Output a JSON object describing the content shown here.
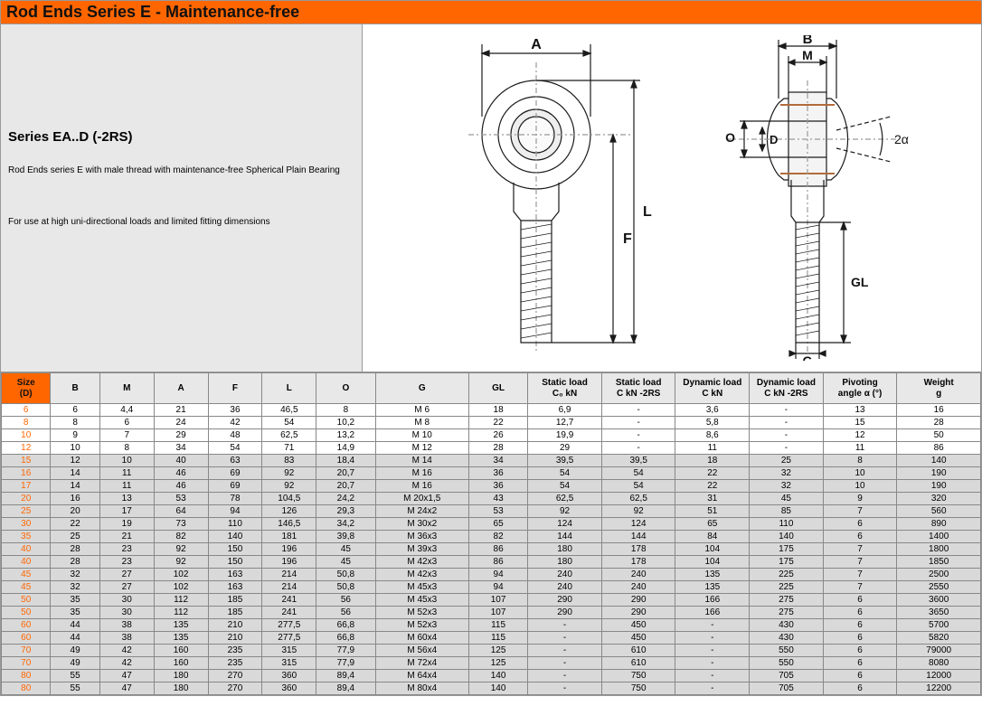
{
  "header": {
    "title": "Rod Ends Series E - Maintenance-free"
  },
  "series": {
    "name": "Series EA..D (-2RS)",
    "line1": "Rod Ends series E with male thread with maintenance-free Spherical Plain Bearing",
    "line2": "For use at high uni-directional loads and limited fitting dimensions"
  },
  "diagram": {
    "labels": {
      "A": "A",
      "F": "F",
      "L": "L",
      "B": "B",
      "M": "M",
      "O": "O",
      "D": "D",
      "GL": "GL",
      "G": "G",
      "angle": "2α"
    },
    "stroke": "#1a1a1a",
    "thin": "#777",
    "copper": "#b36b3a"
  },
  "table": {
    "columns": [
      "Size\n(D)",
      "B",
      "M",
      "A",
      "F",
      "L",
      "O",
      "G",
      "GL",
      "Static load\nC₀ kN",
      "Static load\nC kN -2RS",
      "Dynamic load\nC kN",
      "Dynamic load\nC kN -2RS",
      "Pivoting\nangle α (°)",
      "Weight\ng"
    ],
    "rows": [
      [
        "6",
        "6",
        "4,4",
        "21",
        "36",
        "46,5",
        "8",
        "M 6",
        "18",
        "6,9",
        "-",
        "3,6",
        "-",
        "13",
        "16"
      ],
      [
        "8",
        "8",
        "6",
        "24",
        "42",
        "54",
        "10,2",
        "M 8",
        "22",
        "12,7",
        "-",
        "5,8",
        "-",
        "15",
        "28"
      ],
      [
        "10",
        "9",
        "7",
        "29",
        "48",
        "62,5",
        "13,2",
        "M 10",
        "26",
        "19,9",
        "-",
        "8,6",
        "-",
        "12",
        "50"
      ],
      [
        "12",
        "10",
        "8",
        "34",
        "54",
        "71",
        "14,9",
        "M 12",
        "28",
        "29",
        "-",
        "11",
        "-",
        "11",
        "86"
      ],
      [
        "15",
        "12",
        "10",
        "40",
        "63",
        "83",
        "18,4",
        "M 14",
        "34",
        "39,5",
        "39,5",
        "18",
        "25",
        "8",
        "140"
      ],
      [
        "16",
        "14",
        "11",
        "46",
        "69",
        "92",
        "20,7",
        "M 16",
        "36",
        "54",
        "54",
        "22",
        "32",
        "10",
        "190"
      ],
      [
        "17",
        "14",
        "11",
        "46",
        "69",
        "92",
        "20,7",
        "M 16",
        "36",
        "54",
        "54",
        "22",
        "32",
        "10",
        "190"
      ],
      [
        "20",
        "16",
        "13",
        "53",
        "78",
        "104,5",
        "24,2",
        "M 20x1,5",
        "43",
        "62,5",
        "62,5",
        "31",
        "45",
        "9",
        "320"
      ],
      [
        "25",
        "20",
        "17",
        "64",
        "94",
        "126",
        "29,3",
        "M 24x2",
        "53",
        "92",
        "92",
        "51",
        "85",
        "7",
        "560"
      ],
      [
        "30",
        "22",
        "19",
        "73",
        "110",
        "146,5",
        "34,2",
        "M 30x2",
        "65",
        "124",
        "124",
        "65",
        "110",
        "6",
        "890"
      ],
      [
        "35",
        "25",
        "21",
        "82",
        "140",
        "181",
        "39,8",
        "M 36x3",
        "82",
        "144",
        "144",
        "84",
        "140",
        "6",
        "1400"
      ],
      [
        "40",
        "28",
        "23",
        "92",
        "150",
        "196",
        "45",
        "M 39x3",
        "86",
        "180",
        "178",
        "104",
        "175",
        "7",
        "1800"
      ],
      [
        "40",
        "28",
        "23",
        "92",
        "150",
        "196",
        "45",
        "M 42x3",
        "86",
        "180",
        "178",
        "104",
        "175",
        "7",
        "1850"
      ],
      [
        "45",
        "32",
        "27",
        "102",
        "163",
        "214",
        "50,8",
        "M 42x3",
        "94",
        "240",
        "240",
        "135",
        "225",
        "7",
        "2500"
      ],
      [
        "45",
        "32",
        "27",
        "102",
        "163",
        "214",
        "50,8",
        "M 45x3",
        "94",
        "240",
        "240",
        "135",
        "225",
        "7",
        "2550"
      ],
      [
        "50",
        "35",
        "30",
        "112",
        "185",
        "241",
        "56",
        "M 45x3",
        "107",
        "290",
        "290",
        "166",
        "275",
        "6",
        "3600"
      ],
      [
        "50",
        "35",
        "30",
        "112",
        "185",
        "241",
        "56",
        "M 52x3",
        "107",
        "290",
        "290",
        "166",
        "275",
        "6",
        "3650"
      ],
      [
        "60",
        "44",
        "38",
        "135",
        "210",
        "277,5",
        "66,8",
        "M 52x3",
        "115",
        "-",
        "450",
        "-",
        "430",
        "6",
        "5700"
      ],
      [
        "60",
        "44",
        "38",
        "135",
        "210",
        "277,5",
        "66,8",
        "M 60x4",
        "115",
        "-",
        "450",
        "-",
        "430",
        "6",
        "5820"
      ],
      [
        "70",
        "49",
        "42",
        "160",
        "235",
        "315",
        "77,9",
        "M 56x4",
        "125",
        "-",
        "610",
        "-",
        "550",
        "6",
        "79000"
      ],
      [
        "70",
        "49",
        "42",
        "160",
        "235",
        "315",
        "77,9",
        "M 72x4",
        "125",
        "-",
        "610",
        "-",
        "550",
        "6",
        "8080"
      ],
      [
        "80",
        "55",
        "47",
        "180",
        "270",
        "360",
        "89,4",
        "M 64x4",
        "140",
        "-",
        "750",
        "-",
        "705",
        "6",
        "12000"
      ],
      [
        "80",
        "55",
        "47",
        "180",
        "270",
        "360",
        "89,4",
        "M 80x4",
        "140",
        "-",
        "750",
        "-",
        "705",
        "6",
        "12200"
      ]
    ],
    "shaded_start_index": 4
  }
}
